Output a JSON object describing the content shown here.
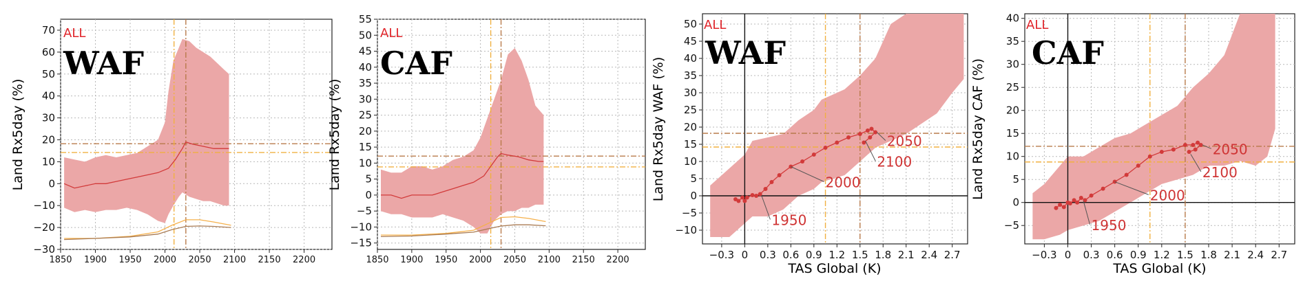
{
  "colors": {
    "band": "#eba7a7",
    "median": "#d23a3a",
    "scenario_text": "#e0242a",
    "dashed_orange": "#f0b040",
    "dashed_brown": "#b87a4a",
    "small_orange": "#f5b04a",
    "small_brown": "#a87a52",
    "axis": "#222222",
    "grid": "#b7b7b7",
    "years_label": "#cf3434"
  },
  "chart_data": [
    {
      "id": "waf_time",
      "type": "area",
      "scenario": "ALL",
      "region": "WAF",
      "ylabel": "Land  Rx5day  (%)",
      "xlim": [
        1850,
        2240
      ],
      "ylim": [
        -30,
        75
      ],
      "x_ticks": [
        1850,
        1900,
        1950,
        2000,
        2050,
        2100,
        2150,
        2200
      ],
      "y_ticks": [
        -30,
        -20,
        -10,
        0,
        10,
        20,
        30,
        40,
        50,
        60,
        70
      ],
      "median": {
        "x": [
          1855,
          1870,
          1885,
          1900,
          1915,
          1930,
          1945,
          1960,
          1975,
          1990,
          2005,
          2015,
          2025,
          2030,
          2040,
          2055,
          2070,
          2085,
          2092
        ],
        "y": [
          0,
          -2,
          -1,
          0,
          0,
          1,
          2,
          3,
          4,
          5,
          7,
          11,
          16,
          19,
          18,
          17,
          16,
          16,
          16
        ]
      },
      "band_upper": {
        "x": [
          1855,
          1870,
          1885,
          1900,
          1915,
          1930,
          1945,
          1960,
          1975,
          1990,
          2000,
          2005,
          2012,
          2020,
          2025,
          2035,
          2045,
          2055,
          2065,
          2075,
          2085,
          2092
        ],
        "y": [
          12,
          11,
          10,
          12,
          13,
          12,
          13,
          14,
          17,
          20,
          28,
          42,
          56,
          62,
          66,
          65,
          62,
          60,
          58,
          55,
          52,
          50
        ]
      },
      "band_lower": {
        "x": [
          1855,
          1870,
          1885,
          1900,
          1915,
          1930,
          1945,
          1960,
          1975,
          1990,
          2000,
          2005,
          2012,
          2020,
          2025,
          2035,
          2045,
          2055,
          2065,
          2075,
          2085,
          2092
        ],
        "y": [
          -11,
          -13,
          -12,
          -13,
          -12,
          -12,
          -11,
          -12,
          -14,
          -17,
          -18,
          -14,
          -10,
          -6,
          -4,
          -6,
          -7,
          -8,
          -8,
          -9,
          -10,
          -10
        ]
      },
      "small_orange": {
        "x": [
          1855,
          1900,
          1950,
          1990,
          2010,
          2030,
          2050,
          2070,
          2095
        ],
        "y": [
          -25,
          -25,
          -24,
          -22,
          -19,
          -16.5,
          -16.5,
          -17.5,
          -19
        ]
      },
      "small_brown": {
        "x": [
          1855,
          1900,
          1950,
          1990,
          2010,
          2030,
          2050,
          2070,
          2095
        ],
        "y": [
          -25.5,
          -25,
          -24.3,
          -23,
          -21,
          -19.5,
          -19.3,
          -19.5,
          -20
        ]
      },
      "hlines": [
        {
          "y": 18.2,
          "style": "brown"
        },
        {
          "y": 14.2,
          "style": "orange"
        }
      ],
      "vlines": [
        {
          "x": 2013,
          "style": "orange"
        },
        {
          "x": 2030,
          "style": "brown"
        }
      ]
    },
    {
      "id": "caf_time",
      "type": "area",
      "scenario": "ALL",
      "region": "CAF",
      "ylabel": "Land  Rx5day  (%)",
      "xlim": [
        1850,
        2240
      ],
      "ylim": [
        -17,
        55
      ],
      "x_ticks": [
        1850,
        1900,
        1950,
        2000,
        2050,
        2100,
        2150,
        2200
      ],
      "y_ticks": [
        -15,
        -10,
        -5,
        0,
        5,
        10,
        15,
        20,
        25,
        30,
        35,
        40,
        45,
        50,
        55
      ],
      "median": {
        "x": [
          1855,
          1870,
          1885,
          1900,
          1915,
          1930,
          1945,
          1960,
          1975,
          1990,
          2005,
          2015,
          2025,
          2030,
          2040,
          2055,
          2070,
          2085,
          2092
        ],
        "y": [
          0,
          0,
          -1,
          0,
          0,
          0,
          1,
          2,
          3,
          4,
          6,
          9,
          12,
          13,
          12.5,
          12,
          11,
          10.5,
          10.5
        ]
      },
      "band_upper": {
        "x": [
          1855,
          1870,
          1885,
          1900,
          1915,
          1930,
          1945,
          1960,
          1975,
          1990,
          2000,
          2010,
          2020,
          2030,
          2040,
          2050,
          2060,
          2070,
          2080,
          2092
        ],
        "y": [
          8,
          7,
          7,
          9,
          9,
          8,
          9,
          11,
          12,
          14,
          18,
          24,
          30,
          36,
          44,
          46,
          42,
          36,
          28,
          25
        ]
      },
      "band_lower": {
        "x": [
          1855,
          1870,
          1885,
          1900,
          1915,
          1930,
          1945,
          1960,
          1975,
          1990,
          2000,
          2010,
          2020,
          2030,
          2040,
          2050,
          2060,
          2070,
          2080,
          2092
        ],
        "y": [
          -5,
          -6,
          -6,
          -7,
          -7,
          -7,
          -6,
          -7,
          -8,
          -10,
          -12,
          -12,
          -8,
          -6,
          -5,
          -5,
          -4,
          -4,
          -3,
          -3
        ]
      },
      "small_orange": {
        "x": [
          1855,
          1900,
          1950,
          1990,
          2010,
          2030,
          2050,
          2070,
          2095
        ],
        "y": [
          -12.5,
          -12.5,
          -12,
          -11,
          -9,
          -7,
          -6.8,
          -7.3,
          -8.3
        ]
      },
      "small_brown": {
        "x": [
          1855,
          1900,
          1950,
          1990,
          2010,
          2030,
          2050,
          2070,
          2095
        ],
        "y": [
          -13,
          -12.8,
          -12.2,
          -11.6,
          -10.6,
          -9.7,
          -9.3,
          -9.3,
          -9.6
        ]
      },
      "hlines": [
        {
          "y": 12.2,
          "style": "brown"
        },
        {
          "y": 8.8,
          "style": "orange"
        }
      ],
      "vlines": [
        {
          "x": 2015,
          "style": "orange"
        },
        {
          "x": 2030,
          "style": "brown"
        }
      ]
    },
    {
      "id": "waf_tas",
      "type": "scatter",
      "scenario": "ALL",
      "region": "WAF",
      "ylabel": "Land  Rx5day  WAF  (%)",
      "xlabel": "TAS  Global  (K)",
      "xlim": [
        -0.55,
        2.9
      ],
      "ylim": [
        -14,
        53
      ],
      "x_ticks": [
        -0.3,
        0,
        0.3,
        0.6,
        0.9,
        1.2,
        1.5,
        1.8,
        2.1,
        2.4,
        2.7
      ],
      "x_tick_labels": [
        "−0.3",
        "0",
        "0.3",
        "0.6",
        "0.9",
        "1.2",
        "1.5",
        "1.8",
        "2.1",
        "2.4",
        "2.7"
      ],
      "y_ticks": [
        -10,
        -5,
        0,
        5,
        10,
        15,
        20,
        25,
        30,
        35,
        40,
        45,
        50
      ],
      "band_upper": {
        "x": [
          -0.45,
          -0.2,
          0,
          0.1,
          0.3,
          0.5,
          0.7,
          0.9,
          1.0,
          1.3,
          1.5,
          1.7,
          1.9,
          2.1,
          2.3,
          2.5,
          2.7,
          2.85
        ],
        "y": [
          3,
          8,
          12,
          16,
          17,
          18,
          22,
          25,
          28,
          31,
          35,
          40,
          50,
          53,
          53,
          53,
          53,
          53
        ]
      },
      "band_lower": {
        "x": [
          -0.45,
          -0.2,
          0,
          0.1,
          0.3,
          0.5,
          0.7,
          0.9,
          1.0,
          1.3,
          1.5,
          1.7,
          1.9,
          2.1,
          2.3,
          2.5,
          2.7,
          2.85
        ],
        "y": [
          -12,
          -12,
          -8,
          -6,
          -6,
          -4,
          0,
          2,
          4,
          6,
          10,
          14,
          16,
          18,
          21,
          24,
          30,
          34
        ]
      },
      "trajectory": {
        "x": [
          -0.12,
          -0.08,
          -0.03,
          0.0,
          0.03,
          0.1,
          0.15,
          0.2,
          0.27,
          0.35,
          0.45,
          0.6,
          0.75,
          0.9,
          1.05,
          1.2,
          1.35,
          1.5,
          1.6,
          1.65,
          1.7,
          1.63,
          1.55
        ],
        "y": [
          -1,
          -1.5,
          -0.5,
          -1.5,
          -0.5,
          0.2,
          0,
          0.5,
          2,
          4,
          6,
          8.5,
          10,
          12,
          14,
          15.5,
          17,
          18,
          19,
          19.5,
          18.5,
          17,
          15.5
        ]
      },
      "year_labels": [
        {
          "text": "1950",
          "x": 0.22,
          "y": 0,
          "lx": 0.35,
          "ly": -8.5
        },
        {
          "text": "2000",
          "x": 0.6,
          "y": 8.5,
          "lx": 1.05,
          "ly": 2.5
        },
        {
          "text": "2050",
          "x": 1.72,
          "y": 18.5,
          "lx": 1.85,
          "ly": 14.5
        },
        {
          "text": "2100",
          "x": 1.57,
          "y": 16,
          "lx": 1.72,
          "ly": 8.5
        }
      ],
      "hlines": [
        {
          "y": 18.2,
          "style": "brown"
        },
        {
          "y": 14.2,
          "style": "orange"
        }
      ],
      "vlines": [
        {
          "x": 1.05,
          "style": "orange"
        },
        {
          "x": 1.5,
          "style": "brown"
        }
      ],
      "zero_lines": true
    },
    {
      "id": "caf_tas",
      "type": "scatter",
      "scenario": "ALL",
      "region": "CAF",
      "ylabel": "Land  Rx5day  CAF  (%)",
      "xlabel": "TAS  Global  (K)",
      "xlim": [
        -0.55,
        2.9
      ],
      "ylim": [
        -9,
        41
      ],
      "x_ticks": [
        -0.3,
        0,
        0.3,
        0.6,
        0.9,
        1.2,
        1.5,
        1.8,
        2.1,
        2.4,
        2.7
      ],
      "x_tick_labels": [
        "−0.3",
        "0",
        "0.3",
        "0.6",
        "0.9",
        "1.2",
        "1.5",
        "1.8",
        "2.1",
        "2.4",
        "2.7"
      ],
      "y_ticks": [
        -5,
        0,
        5,
        10,
        15,
        20,
        25,
        30,
        35,
        40
      ],
      "band_upper": {
        "x": [
          -0.45,
          -0.3,
          -0.1,
          0.0,
          0.2,
          0.4,
          0.6,
          0.8,
          1.0,
          1.2,
          1.4,
          1.6,
          1.8,
          2.0,
          2.2,
          2.4,
          2.55,
          2.65
        ],
        "y": [
          2,
          4,
          8,
          10,
          10,
          12,
          14,
          15,
          17,
          19,
          21,
          25,
          28,
          32,
          41,
          41,
          41,
          41
        ]
      },
      "band_lower": {
        "x": [
          -0.45,
          -0.3,
          -0.1,
          0.0,
          0.2,
          0.4,
          0.6,
          0.8,
          1.0,
          1.2,
          1.4,
          1.6,
          1.8,
          2.0,
          2.2,
          2.4,
          2.55,
          2.65
        ],
        "y": [
          -8,
          -8,
          -7,
          -6,
          -5,
          -4,
          -2,
          0,
          2,
          4,
          5,
          6,
          8,
          8,
          9,
          8,
          10,
          16
        ]
      },
      "trajectory": {
        "x": [
          -0.15,
          -0.1,
          -0.05,
          0.0,
          0.03,
          0.08,
          0.12,
          0.17,
          0.22,
          0.3,
          0.45,
          0.6,
          0.75,
          0.9,
          1.05,
          1.2,
          1.35,
          1.5,
          1.6,
          1.66,
          1.7,
          1.63,
          1.55
        ],
        "y": [
          -1.2,
          -0.5,
          -1,
          0,
          -0.2,
          0.5,
          0,
          1,
          0.5,
          1.5,
          3,
          4.5,
          6,
          8,
          10,
          11,
          11.5,
          12.5,
          12.5,
          13,
          12.5,
          11.5,
          11
        ]
      },
      "year_labels": [
        {
          "text": "1950",
          "x": 0.2,
          "y": 0.3,
          "lx": 0.3,
          "ly": -6
        },
        {
          "text": "2000",
          "x": 0.6,
          "y": 4.5,
          "lx": 1.05,
          "ly": 0.5
        },
        {
          "text": "2050",
          "x": 1.72,
          "y": 12.5,
          "lx": 1.85,
          "ly": 10.5
        },
        {
          "text": "2100",
          "x": 1.57,
          "y": 10.5,
          "lx": 1.72,
          "ly": 5.5
        }
      ],
      "hlines": [
        {
          "y": 12.2,
          "style": "brown"
        },
        {
          "y": 8.8,
          "style": "orange"
        }
      ],
      "vlines": [
        {
          "x": 1.05,
          "style": "orange"
        },
        {
          "x": 1.5,
          "style": "brown"
        }
      ],
      "zero_lines": true
    }
  ]
}
